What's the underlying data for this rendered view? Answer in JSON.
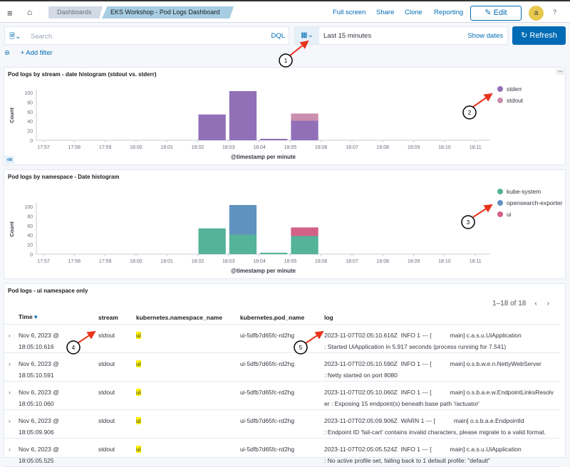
{
  "header": {
    "breadcrumbs": [
      "Dashboards",
      "EKS Workshop - Pod Logs Dashboard"
    ],
    "links": [
      "Full screen",
      "Share",
      "Clone",
      "Reporting"
    ],
    "edit_label": "Edit",
    "avatar": "a",
    "menu_icon": "hamburger-icon",
    "home_icon": "home-icon",
    "help_icon": "help-icon"
  },
  "query": {
    "placeholder": "Search",
    "language": "DQL",
    "time_range": "Last 15 minutes",
    "show_dates": "Show dates",
    "refresh": "Refresh",
    "add_filter": "+ Add filter"
  },
  "panels": [
    {
      "title": "Pod logs by stream - date histogram (stdout vs. stderr)"
    },
    {
      "title": "Pod logs by namespace - Date histogram"
    },
    {
      "title": "Pod logs - ui namespace only"
    }
  ],
  "chart_data": [
    {
      "type": "bar",
      "stacked": true,
      "categories": [
        "17:57",
        "17:58",
        "17:59",
        "18:00",
        "18:01",
        "18:02",
        "18:03",
        "18:04",
        "18:05",
        "18:06",
        "18:07",
        "18:08",
        "18:09",
        "18:10",
        "18:11"
      ],
      "xlabel": "@timestamp per minute",
      "ylabel": "Count",
      "yticks": [
        0,
        20,
        40,
        60,
        80,
        100
      ],
      "ylim": [
        0,
        110
      ],
      "legend": "right",
      "series": [
        {
          "name": "stderr",
          "color": "#9170b8",
          "values": [
            0,
            0,
            0,
            0,
            0,
            54,
            103,
            3,
            41,
            0,
            0,
            0,
            0,
            0,
            0
          ]
        },
        {
          "name": "stdout",
          "color": "#ca8eae",
          "values": [
            0,
            0,
            0,
            0,
            0,
            0,
            0,
            0,
            15,
            0,
            0,
            0,
            0,
            0,
            0
          ]
        }
      ]
    },
    {
      "type": "bar",
      "stacked": true,
      "categories": [
        "17:57",
        "17:58",
        "17:59",
        "18:00",
        "18:01",
        "18:02",
        "18:03",
        "18:04",
        "18:05",
        "18:06",
        "18:07",
        "18:08",
        "18:09",
        "18:10",
        "18:11"
      ],
      "xlabel": "@timestamp per minute",
      "ylabel": "Count",
      "yticks": [
        0,
        20,
        40,
        60,
        80,
        100
      ],
      "ylim": [
        0,
        110
      ],
      "legend": "right",
      "series": [
        {
          "name": "kube-system",
          "color": "#54b399",
          "values": [
            0,
            0,
            0,
            0,
            0,
            54,
            41,
            3,
            38,
            0,
            0,
            0,
            0,
            0,
            0
          ]
        },
        {
          "name": "opensearch-exporter",
          "color": "#6092c0",
          "values": [
            0,
            0,
            0,
            0,
            0,
            0,
            62,
            0,
            0,
            0,
            0,
            0,
            0,
            0,
            0
          ]
        },
        {
          "name": "ui",
          "color": "#d36086",
          "values": [
            0,
            0,
            0,
            0,
            0,
            0,
            0,
            0,
            18,
            0,
            0,
            0,
            0,
            0,
            0
          ]
        }
      ]
    }
  ],
  "table": {
    "pagination": "1–18 of 18",
    "columns": [
      "Time",
      "stream",
      "kubernetes.namespace_name",
      "kubernetes.pod_name",
      "log"
    ],
    "rows": [
      {
        "time": "Nov 6, 2023 @ 18:05:10.616",
        "stream": "stdout",
        "ns": "ui",
        "pod": "ui-5dfb7d65fc-rd2hg",
        "log": "2023-11-07T02:05:10.616Z  INFO 1 --- [           main] c.a.s.u.UiApplication                    : Started UiApplication in 5.917 seconds (process running for 7.541)"
      },
      {
        "time": "Nov 6, 2023 @ 18:05:10.591",
        "stream": "stdout",
        "ns": "ui",
        "pod": "ui-5dfb7d65fc-rd2hg",
        "log": "2023-11-07T02:05:10.590Z  INFO 1 --- [           main] o.s.b.w.e.n.NettyWebServer               : Netty started on port 8080"
      },
      {
        "time": "Nov 6, 2023 @ 18:05:10.060",
        "stream": "stdout",
        "ns": "ui",
        "pod": "ui-5dfb7d65fc-rd2hg",
        "log": "2023-11-07T02:05:10.060Z  INFO 1 --- [           main] o.s.b.a.e.w.EndpointLinksResolver : Exposing 15 endpoint(s) beneath base path '/actuator'"
      },
      {
        "time": "Nov 6, 2023 @ 18:05:09.906",
        "stream": "stdout",
        "ns": "ui",
        "pod": "ui-5dfb7d65fc-rd2hg",
        "log": "2023-11-07T02:05:09.906Z  WARN 1 --- [           main] o.s.b.a.e.EndpointId                     : Endpoint ID 'fail-cart' contains invalid characters, please migrate to a valid format."
      },
      {
        "time": "Nov 6, 2023 @ 18:05:05.525",
        "stream": "stdout",
        "ns": "ui",
        "pod": "ui-5dfb7d65fc-rd2hg",
        "log": "2023-11-07T02:05:05.524Z  INFO 1 --- [           main] c.a.s.u.UiApplication                    : No active profile set, falling back to 1 default profile: \"default\""
      }
    ]
  },
  "annotations": [
    "1",
    "2",
    "3",
    "4",
    "5"
  ]
}
